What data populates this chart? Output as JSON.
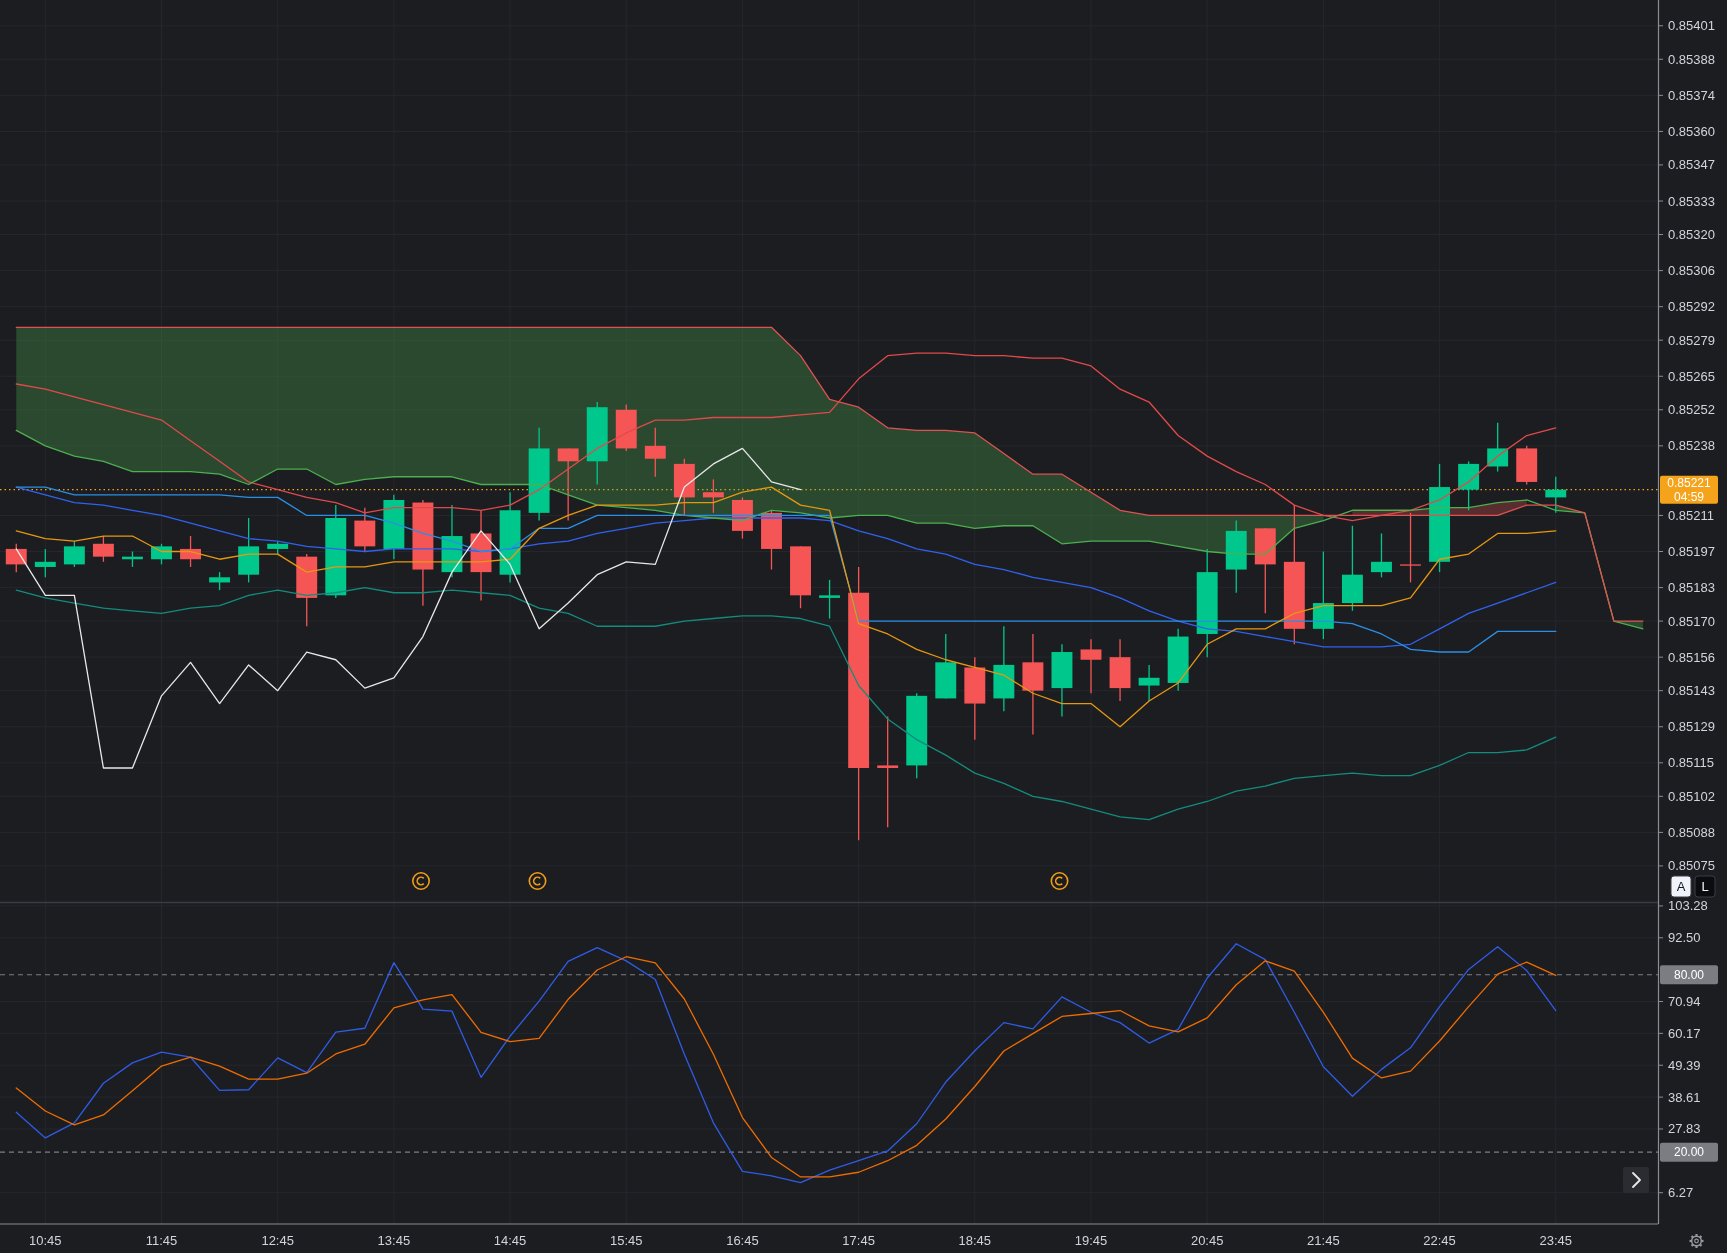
{
  "chart_data": [
    {
      "type": "candlestick",
      "x": [
        10.5,
        10.75,
        11,
        11.25,
        11.5,
        11.75,
        12,
        12.25,
        12.5,
        12.75,
        13,
        13.25,
        13.5,
        13.75,
        14,
        14.25,
        14.5,
        14.75,
        15,
        15.25,
        15.5,
        15.75,
        16,
        16.25,
        16.5,
        16.75,
        17,
        17.25,
        17.5,
        17.75,
        18,
        18.25,
        18.5,
        18.75,
        19,
        19.25,
        19.5,
        19.75,
        20,
        20.25,
        20.5,
        20.75,
        21,
        21.25,
        21.5,
        21.75,
        22,
        22.25,
        22.5,
        22.75,
        23,
        23.25,
        23.5,
        23.75
      ],
      "ohlc": [
        [
          0.85198,
          0.852,
          0.85189,
          0.85192
        ],
        [
          0.85191,
          0.85198,
          0.85187,
          0.85193
        ],
        [
          0.85192,
          0.85201,
          0.85191,
          0.85199
        ],
        [
          0.852,
          0.85203,
          0.85193,
          0.85195
        ],
        [
          0.85194,
          0.85197,
          0.85191,
          0.85195
        ],
        [
          0.85194,
          0.852,
          0.85192,
          0.85199
        ],
        [
          0.85198,
          0.85203,
          0.85191,
          0.85194
        ],
        [
          0.85185,
          0.85189,
          0.85182,
          0.85187
        ],
        [
          0.85188,
          0.8521,
          0.85185,
          0.85199
        ],
        [
          0.85198,
          0.85201,
          0.85196,
          0.852
        ],
        [
          0.85195,
          0.85196,
          0.85168,
          0.85179
        ],
        [
          0.8518,
          0.85215,
          0.85179,
          0.8521
        ],
        [
          0.85209,
          0.85214,
          0.85197,
          0.85199
        ],
        [
          0.85198,
          0.85219,
          0.85194,
          0.85217
        ],
        [
          0.85216,
          0.85217,
          0.85176,
          0.8519
        ],
        [
          0.85189,
          0.85215,
          0.85187,
          0.85203
        ],
        [
          0.85204,
          0.85213,
          0.85178,
          0.85189
        ],
        [
          0.85188,
          0.8522,
          0.85185,
          0.85213
        ],
        [
          0.85212,
          0.85245,
          0.85209,
          0.85237
        ],
        [
          0.85237,
          0.85237,
          0.85209,
          0.85232
        ],
        [
          0.85232,
          0.85255,
          0.85223,
          0.85253
        ],
        [
          0.85252,
          0.85254,
          0.85236,
          0.85237
        ],
        [
          0.85238,
          0.85245,
          0.85226,
          0.85233
        ],
        [
          0.85231,
          0.85233,
          0.85211,
          0.85218
        ],
        [
          0.8522,
          0.85225,
          0.85212,
          0.85218
        ],
        [
          0.85217,
          0.85218,
          0.85202,
          0.85205
        ],
        [
          0.85212,
          0.85213,
          0.8519,
          0.85198
        ],
        [
          0.85199,
          0.85199,
          0.85175,
          0.8518
        ],
        [
          0.85179,
          0.85186,
          0.85171,
          0.8518
        ],
        [
          0.85181,
          0.85191,
          0.85085,
          0.85113
        ],
        [
          0.85114,
          0.85133,
          0.8509,
          0.85113
        ],
        [
          0.85114,
          0.85142,
          0.85109,
          0.85141
        ],
        [
          0.8514,
          0.85165,
          0.8514,
          0.85154
        ],
        [
          0.85152,
          0.85156,
          0.85124,
          0.85138
        ],
        [
          0.8514,
          0.85168,
          0.85135,
          0.85153
        ],
        [
          0.85154,
          0.85165,
          0.85126,
          0.85143
        ],
        [
          0.85144,
          0.85161,
          0.85133,
          0.85158
        ],
        [
          0.85159,
          0.85163,
          0.85142,
          0.85155
        ],
        [
          0.85156,
          0.85163,
          0.85139,
          0.85144
        ],
        [
          0.85145,
          0.85153,
          0.85139,
          0.85148
        ],
        [
          0.85146,
          0.85167,
          0.85143,
          0.85164
        ],
        [
          0.85165,
          0.85198,
          0.85156,
          0.85189
        ],
        [
          0.8519,
          0.85209,
          0.85181,
          0.85205
        ],
        [
          0.85206,
          0.85206,
          0.85173,
          0.85192
        ],
        [
          0.85193,
          0.85215,
          0.85161,
          0.85167
        ],
        [
          0.85167,
          0.85197,
          0.85163,
          0.85177
        ],
        [
          0.85177,
          0.85207,
          0.85174,
          0.85188
        ],
        [
          0.85189,
          0.85204,
          0.85187,
          0.85193
        ],
        [
          0.85192,
          0.85212,
          0.85185,
          0.85192
        ],
        [
          0.85193,
          0.85231,
          0.85189,
          0.85222
        ],
        [
          0.85221,
          0.85232,
          0.85213,
          0.85231
        ],
        [
          0.8523,
          0.85247,
          0.85228,
          0.85237
        ],
        [
          0.85237,
          0.85238,
          0.85223,
          0.85224
        ],
        [
          0.85218,
          0.85226,
          0.85212,
          0.85221
        ]
      ],
      "colors": [
        "#f65555",
        "#00c88c",
        "#00c88c",
        "#f65555",
        "#00c88c",
        "#00c88c",
        "#f65555",
        "#00c88c",
        "#00c88c",
        "#00c88c",
        "#f65555",
        "#00c88c",
        "#f65555",
        "#00c88c",
        "#f65555",
        "#00c88c",
        "#f65555",
        "#00c88c",
        "#00c88c",
        "#f65555",
        "#00c88c",
        "#f65555",
        "#f65555",
        "#f65555",
        "#f65555",
        "#f65555",
        "#f65555",
        "#f65555",
        "#00c88c",
        "#f65555",
        "#f65555",
        "#00c88c",
        "#00c88c",
        "#f65555",
        "#00c88c",
        "#f65555",
        "#00c88c",
        "#f65555",
        "#f65555",
        "#00c88c",
        "#00c88c",
        "#00c88c",
        "#00c88c",
        "#f65555",
        "#f65555",
        "#00c88c",
        "#00c88c",
        "#00c88c",
        "#f65555",
        "#00c88c",
        "#00c88c",
        "#00c88c",
        "#f65555",
        "#00c88c"
      ],
      "series": [
        {
          "type": "line",
          "color": "#e04a4a",
          "values": [
            0.85262,
            0.8526,
            0.85257,
            0.85254,
            0.85251,
            0.85248,
            0.8524,
            0.85232,
            0.85224,
            0.85221,
            0.85218,
            0.85216,
            0.85212,
            0.85214,
            0.85214,
            0.85214,
            0.85213,
            0.85215,
            0.85221,
            0.85229,
            0.85237,
            0.85243,
            0.85248,
            0.85248,
            0.85249,
            0.85249,
            0.85249,
            0.8525,
            0.85251,
            0.85264,
            0.85273,
            0.85274,
            0.85274,
            0.85273,
            0.85273,
            0.85272,
            0.85272,
            0.85269,
            0.8526,
            0.85255,
            0.85242,
            0.85234,
            0.85228,
            0.85223,
            0.85215,
            0.85211,
            0.85209,
            0.85211,
            0.85213,
            0.85217,
            0.85224,
            0.85234,
            0.85242,
            0.85245
          ]
        },
        {
          "type": "line",
          "color": "#2f62f0",
          "values": [
            0.85222,
            0.85219,
            0.85216,
            0.85215,
            0.85213,
            0.85211,
            0.85208,
            0.85205,
            0.85202,
            0.85201,
            0.85199,
            0.85198,
            0.85197,
            0.85198,
            0.85198,
            0.85198,
            0.85197,
            0.85198,
            0.852,
            0.85201,
            0.85204,
            0.85206,
            0.85208,
            0.85209,
            0.8521,
            0.8521,
            0.8521,
            0.8521,
            0.85209,
            0.85205,
            0.85202,
            0.85198,
            0.85196,
            0.85192,
            0.8519,
            0.85187,
            0.85185,
            0.85183,
            0.85179,
            0.85174,
            0.8517,
            0.85167,
            0.85166,
            0.85164,
            0.85162,
            0.8516,
            0.8516,
            0.8516,
            0.85161,
            0.85167,
            0.85173,
            0.85177,
            0.85181,
            0.85185
          ]
        },
        {
          "type": "line",
          "color": "#138c7e",
          "values": [
            0.85182,
            0.85179,
            0.85177,
            0.85175,
            0.85174,
            0.85173,
            0.85175,
            0.85176,
            0.8518,
            0.85182,
            0.8518,
            0.85181,
            0.85183,
            0.85181,
            0.85181,
            0.85182,
            0.85181,
            0.8518,
            0.85175,
            0.85173,
            0.85168,
            0.85168,
            0.85168,
            0.8517,
            0.85171,
            0.85172,
            0.85172,
            0.85171,
            0.85168,
            0.85145,
            0.85132,
            0.85124,
            0.85118,
            0.85111,
            0.85107,
            0.85102,
            0.851,
            0.85097,
            0.85094,
            0.85093,
            0.85097,
            0.851,
            0.85104,
            0.85106,
            0.85109,
            0.8511,
            0.85111,
            0.8511,
            0.8511,
            0.85114,
            0.85119,
            0.85119,
            0.8512,
            0.85125
          ]
        },
        {
          "type": "line",
          "color": "#4caf50",
          "x": [
            10.5,
            10.75,
            11,
            11.25,
            11.5,
            11.75,
            12,
            12.25,
            12.5,
            12.75,
            13,
            13.25,
            13.5,
            13.75,
            14,
            14.25,
            14.5,
            14.75,
            15,
            15.25,
            15.5,
            15.75,
            16,
            16.25,
            16.5,
            16.75,
            17,
            17.25,
            17.5,
            17.75,
            18,
            18.25,
            18.5,
            18.75,
            19,
            19.25,
            19.5,
            19.75,
            20,
            20.25,
            20.5,
            20.75,
            21,
            21.25,
            21.5,
            21.75,
            22,
            22.25,
            22.5,
            22.75,
            23,
            23.25,
            23.5,
            23.75,
            24,
            24.25,
            24.5
          ],
          "values": [
            0.85244,
            0.85238,
            0.85234,
            0.85232,
            0.85228,
            0.85228,
            0.85228,
            0.85227,
            0.85223,
            0.85229,
            0.85229,
            0.85223,
            0.85225,
            0.85226,
            0.85226,
            0.85226,
            0.85223,
            0.85223,
            0.85223,
            0.85219,
            0.85215,
            0.85214,
            0.85213,
            0.85211,
            0.8521,
            0.85209,
            0.85213,
            0.85212,
            0.8521,
            0.85211,
            0.85211,
            0.85208,
            0.85208,
            0.85206,
            0.85207,
            0.85207,
            0.852,
            0.85201,
            0.85201,
            0.85201,
            0.85199,
            0.85197,
            0.85196,
            0.85196,
            0.85206,
            0.85209,
            0.85213,
            0.85213,
            0.85213,
            0.85214,
            0.85214,
            0.85216,
            0.85217,
            0.85213,
            0.85212,
            0.8517,
            0.85167
          ],
          "lower": [
            0.85244,
            0.85238,
            0.85234,
            0.85232,
            0.85228,
            0.85228,
            0.85228,
            0.85227,
            0.85223,
            0.85229,
            0.85229,
            0.85223,
            0.85225,
            0.85226,
            0.85226,
            0.85226,
            0.85223,
            0.85223,
            0.85223,
            0.85219,
            0.85215,
            0.85214,
            0.85213,
            0.85211,
            0.8521,
            0.85209,
            0.85213,
            0.85212,
            0.8521,
            0.85211,
            0.85211,
            0.85208,
            0.85208,
            0.85206,
            0.85207,
            0.85207,
            0.852,
            0.85201,
            0.85201,
            0.85201,
            0.85199,
            0.85197,
            0.85196,
            0.85196,
            0.85206,
            0.85209,
            null,
            null,
            null,
            null,
            null,
            null,
            null,
            0.85213,
            0.85212,
            0.8517,
            0.85167
          ],
          "upper": [
            0.85284,
            0.85284,
            0.85284,
            0.85284,
            0.85284,
            0.85284,
            0.85284,
            0.85284,
            0.85284,
            0.85284,
            0.85284,
            0.85284,
            0.85284,
            0.85284,
            0.85284,
            0.85284,
            0.85284,
            0.85284,
            0.85284,
            0.85284,
            0.85284,
            0.85284,
            0.85284,
            0.85284,
            0.85284,
            0.85284,
            0.85284,
            0.85273,
            0.85256,
            0.85253,
            0.85245,
            0.85244,
            0.85244,
            0.85243,
            0.85235,
            0.85227,
            0.85227,
            0.8522,
            0.85213,
            0.85211,
            0.85211,
            0.85211,
            0.85211,
            0.85211,
            0.85211,
            0.85211,
            null,
            null,
            null,
            null,
            null,
            null,
            null,
            0.85215,
            0.85212,
            0.8517,
            0.8517
          ]
        },
        {
          "type": "line",
          "color": "#e05252",
          "x": [
            10.5,
            10.75,
            11,
            11.25,
            11.5,
            11.75,
            12,
            12.25,
            12.5,
            12.75,
            13,
            13.25,
            13.5,
            13.75,
            14,
            14.25,
            14.5,
            14.75,
            15,
            15.25,
            15.5,
            15.75,
            16,
            16.25,
            16.5,
            16.75,
            17,
            17.25,
            17.5,
            17.75,
            18,
            18.25,
            18.5,
            18.75,
            19,
            19.25,
            19.5,
            19.75,
            20,
            20.25,
            20.5,
            20.75,
            21,
            21.25,
            21.5,
            21.75,
            22,
            22.25,
            22.5,
            22.75,
            23,
            23.25,
            23.5,
            23.75,
            24,
            24.25,
            24.5
          ],
          "values": [
            0.85284,
            0.85284,
            0.85284,
            0.85284,
            0.85284,
            0.85284,
            0.85284,
            0.85284,
            0.85284,
            0.85284,
            0.85284,
            0.85284,
            0.85284,
            0.85284,
            0.85284,
            0.85284,
            0.85284,
            0.85284,
            0.85284,
            0.85284,
            0.85284,
            0.85284,
            0.85284,
            0.85284,
            0.85284,
            0.85284,
            0.85284,
            0.85273,
            0.85256,
            0.85253,
            0.85245,
            0.85244,
            0.85244,
            0.85243,
            0.85235,
            0.85227,
            0.85227,
            0.8522,
            0.85213,
            0.85211,
            0.85211,
            0.85211,
            0.85211,
            0.85211,
            0.85211,
            0.85211,
            0.85211,
            0.85211,
            0.85211,
            0.85211,
            0.85211,
            0.85211,
            0.85215,
            0.85215,
            0.85212,
            0.8517,
            0.8517
          ],
          "lower": [
            null,
            null,
            null,
            null,
            null,
            null,
            null,
            null,
            null,
            null,
            null,
            null,
            null,
            null,
            null,
            null,
            null,
            null,
            null,
            null,
            null,
            null,
            null,
            null,
            null,
            null,
            null,
            null,
            null,
            null,
            null,
            null,
            null,
            null,
            null,
            null,
            null,
            null,
            null,
            null,
            null,
            null,
            null,
            null,
            null,
            null,
            0.85211,
            0.85211,
            0.85211,
            0.85211,
            0.85211,
            0.85211,
            0.85215,
            null,
            null,
            null,
            null
          ],
          "upper": [
            null,
            null,
            null,
            null,
            null,
            null,
            null,
            null,
            null,
            null,
            null,
            null,
            null,
            null,
            null,
            null,
            null,
            null,
            null,
            null,
            null,
            null,
            null,
            null,
            null,
            null,
            null,
            null,
            null,
            null,
            null,
            null,
            null,
            null,
            null,
            null,
            null,
            null,
            null,
            null,
            null,
            null,
            null,
            null,
            null,
            null,
            0.85213,
            0.85213,
            0.85213,
            0.85214,
            0.85214,
            0.85216,
            0.85217,
            null,
            null,
            null,
            null
          ]
        },
        {
          "type": "line",
          "color": "#2a8fe6",
          "values": [
            0.85222,
            0.85222,
            0.85219,
            0.85219,
            0.85219,
            0.85219,
            0.85219,
            0.85219,
            0.85218,
            0.85218,
            0.85211,
            0.85211,
            0.85211,
            0.85208,
            0.85204,
            0.85201,
            0.85197,
            0.85198,
            0.85206,
            0.85206,
            0.85211,
            0.85211,
            0.85211,
            0.85211,
            0.85211,
            0.85211,
            0.85211,
            0.85211,
            0.85211,
            0.8517,
            0.8517,
            0.8517,
            0.8517,
            0.8517,
            0.8517,
            0.8517,
            0.8517,
            0.8517,
            0.8517,
            0.8517,
            0.8517,
            0.8517,
            0.8517,
            0.8517,
            0.8517,
            0.8517,
            0.85169,
            0.85165,
            0.85159,
            0.85158,
            0.85158,
            0.85166,
            0.85166,
            0.85166
          ]
        },
        {
          "type": "line",
          "color": "#e6980f",
          "values": [
            0.85205,
            0.85202,
            0.85201,
            0.85203,
            0.85203,
            0.85197,
            0.85197,
            0.85194,
            0.85196,
            0.85196,
            0.85189,
            0.85191,
            0.85191,
            0.85193,
            0.85193,
            0.85193,
            0.85193,
            0.85194,
            0.85206,
            0.85211,
            0.85215,
            0.85215,
            0.85215,
            0.85216,
            0.85216,
            0.8522,
            0.85222,
            0.85215,
            0.85213,
            0.85169,
            0.85165,
            0.85159,
            0.85155,
            0.85152,
            0.85149,
            0.85142,
            0.85138,
            0.85138,
            0.85129,
            0.85139,
            0.85146,
            0.85161,
            0.85167,
            0.85167,
            0.85173,
            0.85176,
            0.85176,
            0.85176,
            0.85179,
            0.85194,
            0.85196,
            0.85204,
            0.85204,
            0.85205
          ]
        },
        {
          "type": "line",
          "color": "#e8e8e8",
          "x": [
            10.5,
            10.75,
            11,
            11.25,
            11.5,
            11.75,
            12,
            12.25,
            12.5,
            12.75,
            13,
            13.25,
            13.5,
            13.75,
            14,
            14.25,
            14.5,
            14.75,
            15,
            15.25,
            15.5,
            15.75,
            16,
            16.25,
            16.5,
            16.75,
            17,
            17.25
          ],
          "values": [
            0.85198,
            0.8518,
            0.8518,
            0.85113,
            0.85113,
            0.85141,
            0.85154,
            0.85138,
            0.85153,
            0.85143,
            0.85158,
            0.85155,
            0.85144,
            0.85148,
            0.85164,
            0.85189,
            0.85205,
            0.85192,
            0.85167,
            0.85177,
            0.85188,
            0.85193,
            0.85192,
            0.85222,
            0.85231,
            0.85237,
            0.85224,
            0.85221
          ]
        }
      ],
      "xlim": [
        10.36,
        24.63
      ],
      "ylim": [
        0.85061,
        0.85411
      ],
      "xticks": [
        {
          "value": 10.75,
          "label": null
        },
        {
          "value": 11.75,
          "label": null
        },
        {
          "value": 12.75,
          "label": null
        },
        {
          "value": 13.75,
          "label": null
        },
        {
          "value": 14.75,
          "label": null
        },
        {
          "value": 15.75,
          "label": null
        },
        {
          "value": 16.75,
          "label": null
        },
        {
          "value": 17.75,
          "label": null
        },
        {
          "value": 18.75,
          "label": null
        },
        {
          "value": 19.75,
          "label": null
        },
        {
          "value": 20.75,
          "label": null
        },
        {
          "value": 21.75,
          "label": null
        },
        {
          "value": 22.75,
          "label": null
        },
        {
          "value": 23.75,
          "label": null
        }
      ],
      "yticks": [
        0.85401,
        0.85388,
        0.85374,
        {
          "value": 0.8536,
          "label": "0.85360"
        },
        0.85347,
        0.85333,
        {
          "value": 0.8532,
          "label": "0.85320"
        },
        0.85306,
        0.85292,
        0.85279,
        0.85265,
        0.85252,
        0.85238,
        0.85211,
        0.85197,
        0.85183,
        {
          "value": 0.8517,
          "label": "0.85170"
        },
        0.85156,
        0.85143,
        0.85129,
        0.85115,
        0.85102,
        0.85088,
        0.85075
      ],
      "ref_lines": [
        {
          "axis": "y",
          "value": 0.85221,
          "label": "0.85221",
          "color": "#f5a31a",
          "line_style": "dotted"
        }
      ],
      "annotations": [
        "04:59",
        "A",
        "L"
      ],
      "grid": true,
      "tick_labels": "y"
    },
    {
      "type": "line",
      "x": [
        10.5,
        10.75,
        11,
        11.25,
        11.5,
        11.75,
        12,
        12.25,
        12.5,
        12.75,
        13,
        13.25,
        13.5,
        13.75,
        14,
        14.25,
        14.5,
        14.75,
        15,
        15.25,
        15.5,
        15.75,
        16,
        16.25,
        16.5,
        16.75,
        17,
        17.25,
        17.5,
        17.75,
        18,
        18.25,
        18.5,
        18.75,
        19,
        19.25,
        19.5,
        19.75,
        20,
        20.25,
        20.5,
        20.75,
        21,
        21.25,
        21.5,
        21.75,
        22,
        22.25,
        22.5,
        22.75,
        23,
        23.25,
        23.5,
        23.75
      ],
      "series": [
        {
          "color": "#2f5ce6",
          "values": [
            33.5,
            24.8,
            29.9,
            43.3,
            50.2,
            53.8,
            52.1,
            40.9,
            41.1,
            51.9,
            46.9,
            60.6,
            61.9,
            84.1,
            68.4,
            67.7,
            45.3,
            59.2,
            71.1,
            84.5,
            89.2,
            84.7,
            78.4,
            53.1,
            29.9,
            13.5,
            12.0,
            9.7,
            13.9,
            17.1,
            20.4,
            29.6,
            43.7,
            54.3,
            63.8,
            61.7,
            72.5,
            67.3,
            63.8,
            56.9,
            61.5,
            78.9,
            90.5,
            85.1,
            67.3,
            48.9,
            38.9,
            48.0,
            55.3,
            69.2,
            81.8,
            89.5,
            81.4,
            67.9
          ]
        },
        {
          "color": "#ef6c00",
          "values": [
            41.7,
            33.9,
            29.2,
            32.6,
            40.8,
            49.1,
            52.1,
            49.1,
            44.7,
            44.7,
            46.7,
            53.2,
            56.5,
            68.8,
            71.5,
            73.3,
            60.5,
            57.4,
            58.5,
            71.7,
            81.6,
            86.1,
            84.0,
            71.8,
            53.1,
            31.7,
            18.2,
            11.6,
            11.6,
            13.2,
            17.1,
            22.3,
            31.2,
            42.2,
            54.2,
            60.1,
            65.9,
            66.9,
            67.9,
            62.7,
            60.7,
            65.4,
            76.6,
            84.7,
            81.2,
            67.3,
            51.8,
            45.1,
            47.4,
            57.6,
            69.2,
            80.2,
            84.3,
            79.8
          ]
        }
      ],
      "xlim": [
        10.36,
        24.63
      ],
      "ylim": [
        -4.31,
        104.27
      ],
      "xticks": [
        {
          "value": 10.75,
          "label": "10:45"
        },
        {
          "value": 11.75,
          "label": "11:45"
        },
        {
          "value": 12.75,
          "label": "12:45"
        },
        {
          "value": 13.75,
          "label": "13:45"
        },
        {
          "value": 14.75,
          "label": "14:45"
        },
        {
          "value": 15.75,
          "label": "15:45"
        },
        {
          "value": 16.75,
          "label": "16:45"
        },
        {
          "value": 17.75,
          "label": "17:45"
        },
        {
          "value": 18.75,
          "label": "18:45"
        },
        {
          "value": 19.75,
          "label": "19:45"
        },
        {
          "value": 20.75,
          "label": "20:45"
        },
        {
          "value": 21.75,
          "label": "21:45"
        },
        {
          "value": 22.75,
          "label": "22:45"
        },
        {
          "value": 23.75,
          "label": "23:45"
        }
      ],
      "yticks": [
        103.28,
        {
          "value": 92.5,
          "label": "92.50"
        },
        70.94,
        60.17,
        49.39,
        38.61,
        27.83,
        6.27
      ],
      "ref_lines": [
        {
          "axis": "y",
          "value": 80,
          "label": "80.00",
          "color": "#7c7d82",
          "line_style": "dashed"
        },
        {
          "axis": "y",
          "value": 20,
          "label": "20.00",
          "color": "#7c7d82",
          "line_style": "dashed"
        }
      ],
      "grid": true
    }
  ]
}
